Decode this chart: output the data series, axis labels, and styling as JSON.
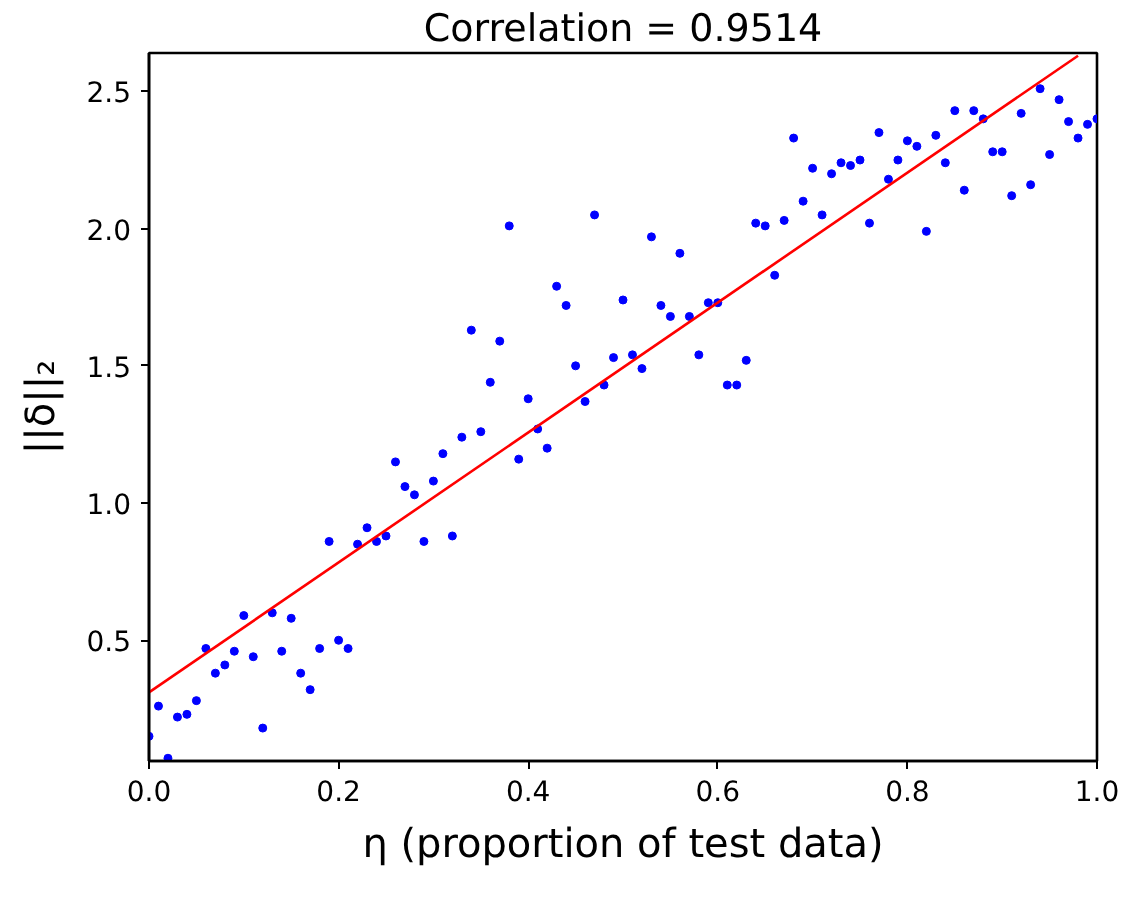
{
  "chart_data": {
    "type": "scatter",
    "title": "Correlation = 0.9514",
    "xlabel": "η (proportion of test data)",
    "ylabel": "||δ||₂",
    "xlim": [
      0,
      1
    ],
    "ylim": [
      0.06,
      2.64
    ],
    "xticks": [
      {
        "value": 0,
        "label": "0.0"
      },
      0.2,
      0.4,
      0.6,
      0.8,
      {
        "value": 1,
        "label": "1.0"
      }
    ],
    "yticks": [
      0.5,
      {
        "value": 1,
        "label": "1.0"
      },
      1.5,
      {
        "value": 2,
        "label": "2.0"
      },
      2.5
    ],
    "grid": false,
    "marker": "circle",
    "series": [
      {
        "color": "#0000ff",
        "x": [
          0,
          0.01,
          0.02,
          0.03,
          0.04,
          0.05,
          0.06,
          0.07,
          0.08,
          0.09,
          0.1,
          0.11,
          0.12,
          0.13,
          0.14,
          0.15,
          0.16,
          0.17,
          0.18,
          0.19,
          0.2,
          0.21,
          0.22,
          0.23,
          0.24,
          0.25,
          0.26,
          0.27,
          0.28,
          0.29,
          0.3,
          0.31,
          0.32,
          0.33,
          0.34,
          0.35,
          0.36,
          0.37,
          0.38,
          0.39,
          0.4,
          0.41,
          0.42,
          0.43,
          0.44,
          0.45,
          0.46,
          0.47,
          0.48,
          0.49,
          0.5,
          0.51,
          0.52,
          0.53,
          0.54,
          0.55,
          0.56,
          0.57,
          0.58,
          0.59,
          0.6,
          0.61,
          0.62,
          0.63,
          0.64,
          0.65,
          0.66,
          0.67,
          0.68,
          0.69,
          0.7,
          0.71,
          0.72,
          0.73,
          0.74,
          0.75,
          0.76,
          0.77,
          0.78,
          0.79,
          0.8,
          0.81,
          0.82,
          0.83,
          0.84,
          0.85,
          0.86,
          0.87,
          0.88,
          0.89,
          0.9,
          0.91,
          0.92,
          0.93,
          0.94,
          0.95,
          0.96,
          0.97,
          0.98,
          0.99,
          1
        ],
        "values": [
          0.15,
          0.26,
          0.07,
          0.22,
          0.23,
          0.28,
          0.47,
          0.38,
          0.41,
          0.46,
          0.59,
          0.44,
          0.18,
          0.6,
          0.46,
          0.58,
          0.38,
          0.32,
          0.47,
          0.86,
          0.5,
          0.47,
          0.85,
          0.91,
          0.86,
          0.88,
          1.15,
          1.06,
          1.03,
          0.86,
          1.08,
          1.18,
          0.88,
          1.24,
          1.63,
          1.26,
          1.44,
          1.59,
          2.01,
          1.16,
          1.38,
          1.27,
          1.2,
          1.79,
          1.72,
          1.5,
          1.37,
          2.05,
          1.43,
          1.53,
          1.74,
          1.54,
          1.49,
          1.97,
          1.72,
          1.68,
          1.91,
          1.68,
          1.54,
          1.73,
          1.73,
          1.43,
          1.43,
          1.52,
          2.02,
          2.01,
          1.83,
          2.03,
          2.33,
          2.1,
          2.22,
          2.05,
          2.2,
          2.24,
          2.23,
          2.25,
          2.02,
          2.35,
          2.18,
          2.25,
          2.32,
          2.3,
          1.99,
          2.34,
          2.24,
          2.43,
          2.14,
          2.43,
          2.4,
          2.28,
          2.28,
          2.12,
          2.42,
          2.16,
          2.51,
          2.27,
          2.47,
          2.39,
          2.33,
          2.38,
          2.4
        ]
      },
      {
        "type": "line",
        "color": "#ff0000",
        "marker": "none",
        "line_style": "solid",
        "x": [
          0,
          0.98
        ],
        "values": [
          0.31,
          2.63
        ]
      }
    ]
  }
}
